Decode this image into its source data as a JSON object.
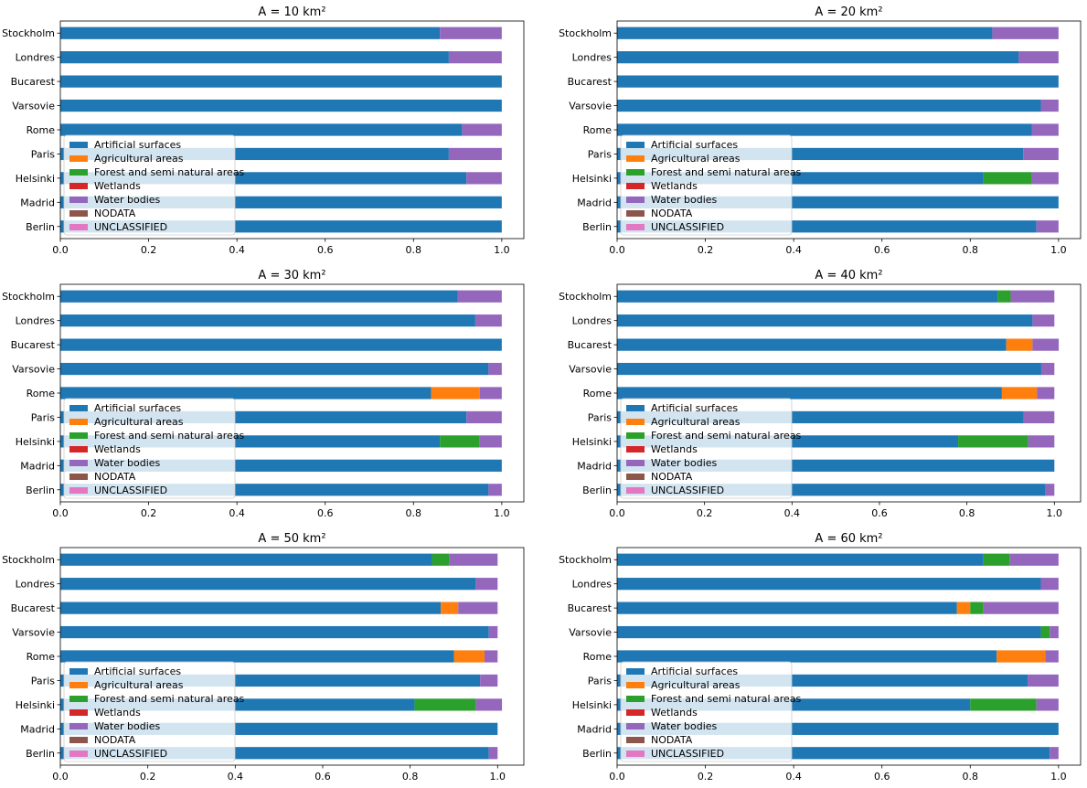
{
  "colors": {
    "Artificial surfaces": "#1f77b4",
    "Agricultural areas": "#ff7f0e",
    "Forest and semi natural areas": "#2ca02c",
    "Wetlands": "#d62728",
    "Water bodies": "#9467bd",
    "NODATA": "#8c564b",
    "UNCLASSIFIED": "#e377c2"
  },
  "chart_data": [
    {
      "type": "bar",
      "orientation": "horizontal",
      "stacked": true,
      "title": "A = 10 km²",
      "categories": [
        "Berlin",
        "Madrid",
        "Helsinki",
        "Paris",
        "Rome",
        "Varsovie",
        "Bucarest",
        "Londres",
        "Stockholm"
      ],
      "xticks": [
        "0.0",
        "0.2",
        "0.4",
        "0.6",
        "0.8",
        "1.0"
      ],
      "xlim": [
        0,
        1.05
      ],
      "grid": false,
      "legend_position": "lower left",
      "series": [
        {
          "name": "Artificial surfaces",
          "values": [
            1.0,
            1.0,
            0.92,
            0.88,
            0.91,
            1.0,
            1.0,
            0.88,
            0.86
          ]
        },
        {
          "name": "Agricultural areas",
          "values": [
            0,
            0,
            0,
            0,
            0,
            0,
            0,
            0,
            0
          ]
        },
        {
          "name": "Forest and semi natural areas",
          "values": [
            0,
            0,
            0,
            0,
            0,
            0,
            0,
            0,
            0
          ]
        },
        {
          "name": "Wetlands",
          "values": [
            0,
            0,
            0,
            0,
            0,
            0,
            0,
            0,
            0
          ]
        },
        {
          "name": "Water bodies",
          "values": [
            0,
            0,
            0.08,
            0.12,
            0.09,
            0,
            0,
            0.12,
            0.14
          ]
        },
        {
          "name": "NODATA",
          "values": [
            0,
            0,
            0,
            0,
            0,
            0,
            0,
            0,
            0
          ]
        },
        {
          "name": "UNCLASSIFIED",
          "values": [
            0,
            0,
            0,
            0,
            0,
            0,
            0,
            0,
            0
          ]
        }
      ]
    },
    {
      "type": "bar",
      "orientation": "horizontal",
      "stacked": true,
      "title": "A = 20 km²",
      "categories": [
        "Berlin",
        "Madrid",
        "Helsinki",
        "Paris",
        "Rome",
        "Varsovie",
        "Bucarest",
        "Londres",
        "Stockholm"
      ],
      "xticks": [
        "0.0",
        "0.2",
        "0.4",
        "0.6",
        "0.8",
        "1.0"
      ],
      "xlim": [
        0,
        1.05
      ],
      "grid": false,
      "legend_position": "lower left",
      "series": [
        {
          "name": "Artificial surfaces",
          "values": [
            0.95,
            1.0,
            0.83,
            0.92,
            0.94,
            0.96,
            1.0,
            0.91,
            0.85
          ]
        },
        {
          "name": "Agricultural areas",
          "values": [
            0,
            0,
            0,
            0,
            0,
            0,
            0,
            0,
            0
          ]
        },
        {
          "name": "Forest and semi natural areas",
          "values": [
            0,
            0,
            0.11,
            0,
            0,
            0,
            0,
            0,
            0
          ]
        },
        {
          "name": "Wetlands",
          "values": [
            0,
            0,
            0,
            0,
            0,
            0,
            0,
            0,
            0
          ]
        },
        {
          "name": "Water bodies",
          "values": [
            0.05,
            0,
            0.06,
            0.08,
            0.06,
            0.04,
            0,
            0.09,
            0.15
          ]
        },
        {
          "name": "NODATA",
          "values": [
            0,
            0,
            0,
            0,
            0,
            0,
            0,
            0,
            0
          ]
        },
        {
          "name": "UNCLASSIFIED",
          "values": [
            0,
            0,
            0,
            0,
            0,
            0,
            0,
            0,
            0
          ]
        }
      ]
    },
    {
      "type": "bar",
      "orientation": "horizontal",
      "stacked": true,
      "title": "A = 30 km²",
      "categories": [
        "Berlin",
        "Madrid",
        "Helsinki",
        "Paris",
        "Rome",
        "Varsovie",
        "Bucarest",
        "Londres",
        "Stockholm"
      ],
      "xticks": [
        "0.0",
        "0.2",
        "0.4",
        "0.6",
        "0.8",
        "1.0"
      ],
      "xlim": [
        0,
        1.05
      ],
      "grid": false,
      "legend_position": "lower left",
      "series": [
        {
          "name": "Artificial surfaces",
          "values": [
            0.97,
            1.0,
            0.86,
            0.92,
            0.84,
            0.97,
            1.0,
            0.94,
            0.9
          ]
        },
        {
          "name": "Agricultural areas",
          "values": [
            0,
            0,
            0,
            0,
            0.11,
            0,
            0,
            0,
            0
          ]
        },
        {
          "name": "Forest and semi natural areas",
          "values": [
            0,
            0,
            0.09,
            0,
            0,
            0,
            0,
            0,
            0
          ]
        },
        {
          "name": "Wetlands",
          "values": [
            0,
            0,
            0,
            0,
            0,
            0,
            0,
            0,
            0
          ]
        },
        {
          "name": "Water bodies",
          "values": [
            0.03,
            0,
            0.05,
            0.08,
            0.05,
            0.03,
            0,
            0.06,
            0.1
          ]
        },
        {
          "name": "NODATA",
          "values": [
            0,
            0,
            0,
            0,
            0,
            0,
            0,
            0,
            0
          ]
        },
        {
          "name": "UNCLASSIFIED",
          "values": [
            0,
            0,
            0,
            0,
            0,
            0,
            0,
            0,
            0
          ]
        }
      ]
    },
    {
      "type": "bar",
      "orientation": "horizontal",
      "stacked": true,
      "title": "A = 40 km²",
      "categories": [
        "Berlin",
        "Madrid",
        "Helsinki",
        "Paris",
        "Rome",
        "Varsovie",
        "Bucarest",
        "Londres",
        "Stockholm"
      ],
      "xticks": [
        "0.0",
        "0.2",
        "0.4",
        "0.6",
        "0.8",
        "1.0"
      ],
      "xlim": [
        0,
        1.06
      ],
      "grid": false,
      "legend_position": "lower left",
      "series": [
        {
          "name": "Artificial surfaces",
          "values": [
            0.98,
            1.0,
            0.78,
            0.93,
            0.88,
            0.97,
            0.89,
            0.95,
            0.87
          ]
        },
        {
          "name": "Agricultural areas",
          "values": [
            0,
            0,
            0,
            0,
            0.08,
            0,
            0.06,
            0,
            0
          ]
        },
        {
          "name": "Forest and semi natural areas",
          "values": [
            0,
            0,
            0.16,
            0,
            0,
            0,
            0,
            0,
            0.03
          ]
        },
        {
          "name": "Wetlands",
          "values": [
            0,
            0,
            0,
            0,
            0,
            0,
            0,
            0,
            0
          ]
        },
        {
          "name": "Water bodies",
          "values": [
            0.02,
            0,
            0.06,
            0.07,
            0.04,
            0.03,
            0.06,
            0.05,
            0.1
          ]
        },
        {
          "name": "NODATA",
          "values": [
            0,
            0,
            0,
            0,
            0,
            0,
            0,
            0,
            0
          ]
        },
        {
          "name": "UNCLASSIFIED",
          "values": [
            0,
            0,
            0,
            0,
            0,
            0,
            0,
            0,
            0
          ]
        }
      ]
    },
    {
      "type": "bar",
      "orientation": "horizontal",
      "stacked": true,
      "title": "A = 50 km²",
      "categories": [
        "Berlin",
        "Madrid",
        "Helsinki",
        "Paris",
        "Rome",
        "Varsovie",
        "Bucarest",
        "Londres",
        "Stockholm"
      ],
      "xticks": [
        "0.0",
        "0.2",
        "0.4",
        "0.6",
        "0.8",
        "1.0"
      ],
      "xlim": [
        0,
        1.06
      ],
      "grid": false,
      "legend_position": "lower left",
      "series": [
        {
          "name": "Artificial surfaces",
          "values": [
            0.98,
            1.0,
            0.81,
            0.96,
            0.9,
            0.98,
            0.87,
            0.95,
            0.85
          ]
        },
        {
          "name": "Agricultural areas",
          "values": [
            0,
            0,
            0,
            0,
            0.07,
            0,
            0.04,
            0,
            0
          ]
        },
        {
          "name": "Forest and semi natural areas",
          "values": [
            0,
            0,
            0.14,
            0,
            0,
            0,
            0,
            0,
            0.04
          ]
        },
        {
          "name": "Wetlands",
          "values": [
            0,
            0,
            0,
            0,
            0,
            0,
            0,
            0,
            0
          ]
        },
        {
          "name": "Water bodies",
          "values": [
            0.02,
            0,
            0.06,
            0.04,
            0.03,
            0.02,
            0.09,
            0.05,
            0.11
          ]
        },
        {
          "name": "NODATA",
          "values": [
            0,
            0,
            0,
            0,
            0,
            0,
            0,
            0,
            0
          ]
        },
        {
          "name": "UNCLASSIFIED",
          "values": [
            0,
            0,
            0,
            0,
            0,
            0,
            0,
            0,
            0
          ]
        }
      ]
    },
    {
      "type": "bar",
      "orientation": "horizontal",
      "stacked": true,
      "title": "A = 60 km²",
      "categories": [
        "Berlin",
        "Madrid",
        "Helsinki",
        "Paris",
        "Rome",
        "Varsovie",
        "Bucarest",
        "Londres",
        "Stockholm"
      ],
      "xticks": [
        "0.0",
        "0.2",
        "0.4",
        "0.6",
        "0.8",
        "1.0"
      ],
      "xlim": [
        0,
        1.05
      ],
      "grid": false,
      "legend_position": "lower left",
      "series": [
        {
          "name": "Artificial surfaces",
          "values": [
            0.98,
            1.0,
            0.8,
            0.93,
            0.86,
            0.96,
            0.77,
            0.96,
            0.83
          ]
        },
        {
          "name": "Agricultural areas",
          "values": [
            0,
            0,
            0,
            0,
            0.11,
            0,
            0.03,
            0,
            0
          ]
        },
        {
          "name": "Forest and semi natural areas",
          "values": [
            0,
            0,
            0.15,
            0,
            0,
            0.02,
            0.03,
            0,
            0.06
          ]
        },
        {
          "name": "Wetlands",
          "values": [
            0,
            0,
            0,
            0,
            0,
            0,
            0,
            0,
            0
          ]
        },
        {
          "name": "Water bodies",
          "values": [
            0.02,
            0,
            0.05,
            0.07,
            0.03,
            0.02,
            0.17,
            0.04,
            0.11
          ]
        },
        {
          "name": "NODATA",
          "values": [
            0,
            0,
            0,
            0,
            0,
            0,
            0,
            0,
            0
          ]
        },
        {
          "name": "UNCLASSIFIED",
          "values": [
            0,
            0,
            0,
            0,
            0,
            0,
            0,
            0,
            0
          ]
        }
      ]
    }
  ]
}
